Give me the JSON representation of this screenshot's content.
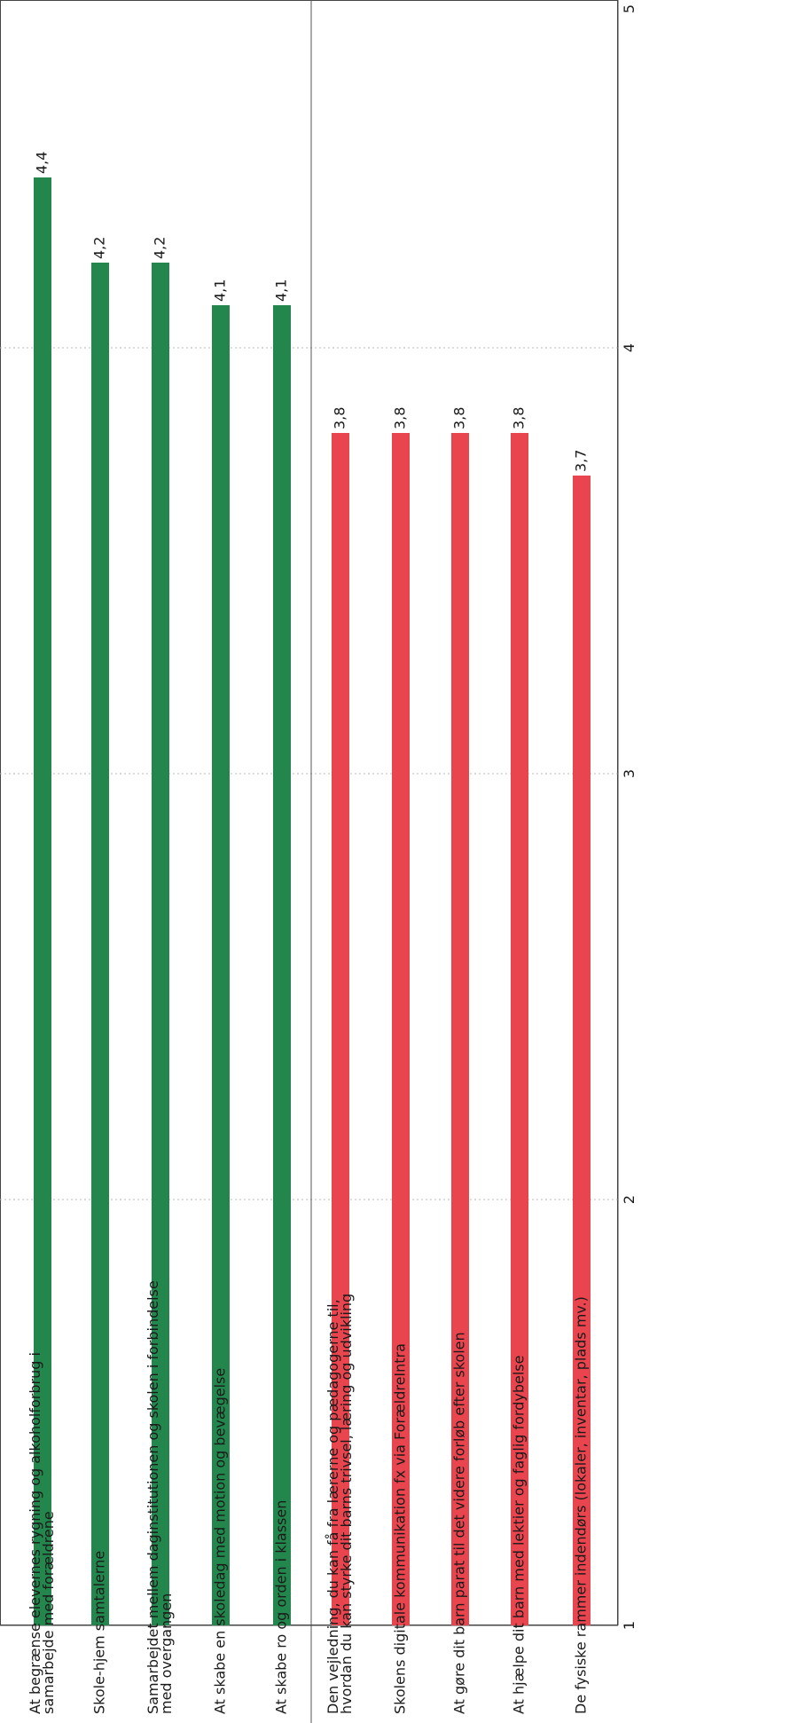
{
  "chart_data": {
    "type": "bar",
    "orientation": "horizontal",
    "rotated": "90deg counter-clockwise",
    "categories": [
      [
        "At begrænse elevernes rygning og alkoholforbrug i",
        "samarbejde med forældrene"
      ],
      [
        "Skole-hjem samtalerne"
      ],
      [
        "Samarbejdet mellem daginstitutionen og skolen i forbindelse",
        "med overgangen"
      ],
      [
        "At skabe en skoledag med motion og bevægelse"
      ],
      [
        "At skabe ro og orden i klassen"
      ],
      [
        "Den vejledning, du kan få fra lærerne og pædagogerne til,",
        "hvordan du kan styrke dit barns trivsel, læring og udvikling"
      ],
      [
        "Skolens digitale kommunikation fx via ForældreIntra"
      ],
      [
        "At gøre dit barn parat til det videre forløb efter skolen"
      ],
      [
        "At hjælpe dit barn med lektier og faglig fordybelse"
      ],
      [
        "De fysiske rammer indendørs (lokaler, inventar, plads mv.)"
      ]
    ],
    "values": [
      4.4,
      4.2,
      4.2,
      4.1,
      4.1,
      3.8,
      3.8,
      3.8,
      3.8,
      3.7
    ],
    "value_labels": [
      "4,4",
      "4,2",
      "4,2",
      "4,1",
      "4,1",
      "3,8",
      "3,8",
      "3,8",
      "3,8",
      "3,7"
    ],
    "bar_colors": [
      "#23874d",
      "#23874d",
      "#23874d",
      "#23874d",
      "#23874d",
      "#e8454f",
      "#e8454f",
      "#e8454f",
      "#e8454f",
      "#e8454f"
    ],
    "xlim": [
      1,
      5
    ],
    "x_ticks": [
      "1",
      "2",
      "3",
      "4",
      "5"
    ],
    "grid": true,
    "group_divider_after": 5
  }
}
